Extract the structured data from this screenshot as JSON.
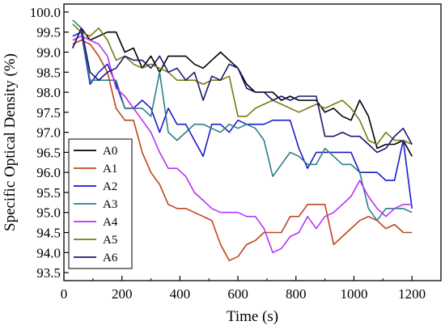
{
  "chart_data": {
    "type": "line",
    "title": "",
    "xlabel": "Time (s)",
    "ylabel": "Specific Optical Density (%)",
    "xlim": [
      0,
      1300
    ],
    "ylim": [
      93.3,
      100.2
    ],
    "x_ticks": [
      0,
      200,
      400,
      600,
      800,
      1000,
      1200
    ],
    "x_tick_labels": [
      "0",
      "200",
      "400",
      "600",
      "800",
      "1000",
      "1200"
    ],
    "y_ticks": [
      93.5,
      94.0,
      94.5,
      95.0,
      95.5,
      96.0,
      96.5,
      97.0,
      97.5,
      98.0,
      98.5,
      99.0,
      99.5,
      100.0
    ],
    "y_tick_labels": [
      "93.5",
      "94.0",
      "94.5",
      "95.0",
      "95.5",
      "96.0",
      "96.5",
      "97.0",
      "97.5",
      "98.0",
      "98.5",
      "99.0",
      "99.5",
      "100.0"
    ],
    "grid": false,
    "legend_position": "bottom-left",
    "series": [
      {
        "name": "A0",
        "color": "#000000",
        "points": [
          [
            30,
            99.1
          ],
          [
            60,
            99.6
          ],
          [
            90,
            99.3
          ],
          [
            120,
            99.4
          ],
          [
            150,
            99.5
          ],
          [
            180,
            99.5
          ],
          [
            210,
            99.0
          ],
          [
            240,
            99.1
          ],
          [
            270,
            98.6
          ],
          [
            300,
            98.9
          ],
          [
            330,
            98.5
          ],
          [
            360,
            98.9
          ],
          [
            390,
            98.9
          ],
          [
            420,
            98.9
          ],
          [
            450,
            98.7
          ],
          [
            480,
            98.6
          ],
          [
            510,
            98.8
          ],
          [
            540,
            99.0
          ],
          [
            570,
            98.8
          ],
          [
            600,
            98.6
          ],
          [
            630,
            98.2
          ],
          [
            660,
            98.0
          ],
          [
            690,
            98.0
          ],
          [
            720,
            98.0
          ],
          [
            750,
            97.8
          ],
          [
            780,
            97.9
          ],
          [
            810,
            97.8
          ],
          [
            840,
            97.8
          ],
          [
            870,
            97.8
          ],
          [
            900,
            97.5
          ],
          [
            930,
            97.6
          ],
          [
            960,
            97.4
          ],
          [
            990,
            97.3
          ],
          [
            1020,
            97.8
          ],
          [
            1050,
            97.4
          ],
          [
            1080,
            96.6
          ],
          [
            1110,
            96.7
          ],
          [
            1140,
            96.7
          ],
          [
            1170,
            96.8
          ],
          [
            1200,
            96.4
          ]
        ]
      },
      {
        "name": "A1",
        "color": "#c0441b",
        "points": [
          [
            30,
            99.2
          ],
          [
            60,
            99.3
          ],
          [
            90,
            99.2
          ],
          [
            120,
            98.9
          ],
          [
            150,
            98.5
          ],
          [
            180,
            97.6
          ],
          [
            210,
            97.3
          ],
          [
            240,
            97.3
          ],
          [
            270,
            96.5
          ],
          [
            300,
            96.0
          ],
          [
            330,
            95.7
          ],
          [
            360,
            95.2
          ],
          [
            390,
            95.1
          ],
          [
            420,
            95.1
          ],
          [
            450,
            95.0
          ],
          [
            480,
            94.9
          ],
          [
            510,
            94.8
          ],
          [
            540,
            94.2
          ],
          [
            570,
            93.8
          ],
          [
            600,
            93.9
          ],
          [
            630,
            94.2
          ],
          [
            660,
            94.3
          ],
          [
            690,
            94.5
          ],
          [
            720,
            94.5
          ],
          [
            750,
            94.5
          ],
          [
            780,
            94.9
          ],
          [
            810,
            94.9
          ],
          [
            840,
            95.2
          ],
          [
            870,
            95.2
          ],
          [
            900,
            95.2
          ],
          [
            930,
            94.2
          ],
          [
            960,
            94.4
          ],
          [
            990,
            94.6
          ],
          [
            1020,
            94.8
          ],
          [
            1050,
            94.9
          ],
          [
            1080,
            94.8
          ],
          [
            1110,
            94.6
          ],
          [
            1140,
            94.7
          ],
          [
            1170,
            94.5
          ],
          [
            1200,
            94.5
          ]
        ]
      },
      {
        "name": "A2",
        "color": "#1a1acf",
        "points": [
          [
            30,
            99.4
          ],
          [
            60,
            99.5
          ],
          [
            90,
            98.2
          ],
          [
            120,
            98.5
          ],
          [
            150,
            98.7
          ],
          [
            180,
            98.2
          ],
          [
            210,
            97.6
          ],
          [
            240,
            97.6
          ],
          [
            270,
            97.8
          ],
          [
            300,
            97.6
          ],
          [
            330,
            97.0
          ],
          [
            360,
            97.6
          ],
          [
            390,
            97.2
          ],
          [
            420,
            97.2
          ],
          [
            450,
            96.8
          ],
          [
            480,
            96.4
          ],
          [
            510,
            97.2
          ],
          [
            540,
            97.2
          ],
          [
            570,
            97.0
          ],
          [
            600,
            97.3
          ],
          [
            630,
            97.2
          ],
          [
            660,
            97.2
          ],
          [
            690,
            97.2
          ],
          [
            720,
            97.3
          ],
          [
            750,
            97.3
          ],
          [
            780,
            97.3
          ],
          [
            810,
            96.6
          ],
          [
            840,
            96.1
          ],
          [
            870,
            96.5
          ],
          [
            900,
            96.5
          ],
          [
            930,
            96.5
          ],
          [
            960,
            96.5
          ],
          [
            990,
            96.5
          ],
          [
            1020,
            96.0
          ],
          [
            1050,
            96.0
          ],
          [
            1080,
            96.0
          ],
          [
            1110,
            95.8
          ],
          [
            1140,
            95.8
          ],
          [
            1170,
            96.8
          ],
          [
            1200,
            95.1
          ]
        ]
      },
      {
        "name": "A3",
        "color": "#2e7d89",
        "points": [
          [
            30,
            99.8
          ],
          [
            60,
            99.6
          ],
          [
            90,
            98.3
          ],
          [
            120,
            98.3
          ],
          [
            150,
            98.3
          ],
          [
            180,
            98.3
          ],
          [
            210,
            97.6
          ],
          [
            240,
            97.6
          ],
          [
            270,
            97.6
          ],
          [
            300,
            97.4
          ],
          [
            330,
            98.5
          ],
          [
            360,
            97.0
          ],
          [
            390,
            96.8
          ],
          [
            420,
            97.0
          ],
          [
            450,
            97.2
          ],
          [
            480,
            97.2
          ],
          [
            510,
            97.1
          ],
          [
            540,
            97.0
          ],
          [
            570,
            97.2
          ],
          [
            600,
            97.1
          ],
          [
            630,
            97.2
          ],
          [
            660,
            97.1
          ],
          [
            690,
            96.8
          ],
          [
            720,
            95.9
          ],
          [
            750,
            96.2
          ],
          [
            780,
            96.5
          ],
          [
            810,
            96.4
          ],
          [
            840,
            96.2
          ],
          [
            870,
            96.2
          ],
          [
            900,
            96.6
          ],
          [
            930,
            96.4
          ],
          [
            960,
            96.2
          ],
          [
            990,
            96.2
          ],
          [
            1020,
            96.0
          ],
          [
            1050,
            95.1
          ],
          [
            1080,
            94.8
          ],
          [
            1110,
            95.1
          ],
          [
            1140,
            95.1
          ],
          [
            1170,
            95.1
          ],
          [
            1200,
            95.0
          ]
        ]
      },
      {
        "name": "A4",
        "color": "#b833f0",
        "points": [
          [
            30,
            99.3
          ],
          [
            60,
            99.4
          ],
          [
            90,
            99.3
          ],
          [
            120,
            99.2
          ],
          [
            150,
            98.9
          ],
          [
            180,
            98.1
          ],
          [
            210,
            97.9
          ],
          [
            240,
            97.6
          ],
          [
            270,
            97.3
          ],
          [
            300,
            97.0
          ],
          [
            330,
            96.5
          ],
          [
            360,
            96.1
          ],
          [
            390,
            96.1
          ],
          [
            420,
            95.9
          ],
          [
            450,
            95.5
          ],
          [
            480,
            95.3
          ],
          [
            510,
            95.1
          ],
          [
            540,
            95.0
          ],
          [
            570,
            95.0
          ],
          [
            600,
            95.0
          ],
          [
            630,
            94.9
          ],
          [
            660,
            94.9
          ],
          [
            690,
            94.6
          ],
          [
            720,
            94.0
          ],
          [
            750,
            94.1
          ],
          [
            780,
            94.4
          ],
          [
            810,
            94.5
          ],
          [
            840,
            94.9
          ],
          [
            870,
            94.6
          ],
          [
            900,
            94.9
          ],
          [
            930,
            95.0
          ],
          [
            960,
            95.2
          ],
          [
            990,
            95.4
          ],
          [
            1020,
            95.8
          ],
          [
            1050,
            95.4
          ],
          [
            1080,
            95.1
          ],
          [
            1110,
            94.9
          ],
          [
            1140,
            95.1
          ],
          [
            1170,
            95.2
          ],
          [
            1200,
            95.2
          ]
        ]
      },
      {
        "name": "A5",
        "color": "#7a7a10",
        "points": [
          [
            30,
            99.7
          ],
          [
            60,
            99.5
          ],
          [
            90,
            99.4
          ],
          [
            120,
            99.6
          ],
          [
            150,
            99.3
          ],
          [
            180,
            98.8
          ],
          [
            210,
            98.9
          ],
          [
            240,
            98.7
          ],
          [
            270,
            98.6
          ],
          [
            300,
            98.7
          ],
          [
            330,
            98.6
          ],
          [
            360,
            98.5
          ],
          [
            390,
            98.3
          ],
          [
            420,
            98.3
          ],
          [
            450,
            98.3
          ],
          [
            480,
            98.2
          ],
          [
            510,
            98.3
          ],
          [
            540,
            98.3
          ],
          [
            570,
            98.4
          ],
          [
            600,
            97.4
          ],
          [
            630,
            97.4
          ],
          [
            660,
            97.6
          ],
          [
            690,
            97.7
          ],
          [
            720,
            97.8
          ],
          [
            750,
            97.7
          ],
          [
            780,
            97.6
          ],
          [
            810,
            97.5
          ],
          [
            840,
            97.6
          ],
          [
            870,
            97.7
          ],
          [
            900,
            97.6
          ],
          [
            930,
            97.7
          ],
          [
            960,
            97.8
          ],
          [
            990,
            97.6
          ],
          [
            1020,
            97.3
          ],
          [
            1050,
            96.8
          ],
          [
            1080,
            96.7
          ],
          [
            1110,
            97.0
          ],
          [
            1140,
            96.8
          ],
          [
            1170,
            96.8
          ],
          [
            1200,
            96.7
          ]
        ]
      },
      {
        "name": "A6",
        "color": "#1a1a70",
        "points": [
          [
            30,
            99.1
          ],
          [
            60,
            99.6
          ],
          [
            90,
            98.5
          ],
          [
            120,
            98.3
          ],
          [
            150,
            98.5
          ],
          [
            180,
            98.6
          ],
          [
            210,
            98.9
          ],
          [
            240,
            98.8
          ],
          [
            270,
            98.8
          ],
          [
            300,
            98.6
          ],
          [
            330,
            98.9
          ],
          [
            360,
            98.5
          ],
          [
            390,
            98.6
          ],
          [
            420,
            98.3
          ],
          [
            450,
            98.5
          ],
          [
            480,
            97.8
          ],
          [
            510,
            98.4
          ],
          [
            540,
            98.3
          ],
          [
            570,
            98.7
          ],
          [
            600,
            98.6
          ],
          [
            630,
            98.1
          ],
          [
            660,
            98.0
          ],
          [
            690,
            98.0
          ],
          [
            720,
            97.8
          ],
          [
            750,
            97.9
          ],
          [
            780,
            97.8
          ],
          [
            810,
            97.9
          ],
          [
            840,
            97.9
          ],
          [
            870,
            97.9
          ],
          [
            900,
            96.9
          ],
          [
            930,
            96.9
          ],
          [
            960,
            97.0
          ],
          [
            990,
            96.9
          ],
          [
            1020,
            96.9
          ],
          [
            1050,
            96.7
          ],
          [
            1080,
            96.5
          ],
          [
            1110,
            96.6
          ],
          [
            1140,
            96.9
          ],
          [
            1170,
            97.1
          ],
          [
            1200,
            96.7
          ]
        ]
      }
    ]
  }
}
